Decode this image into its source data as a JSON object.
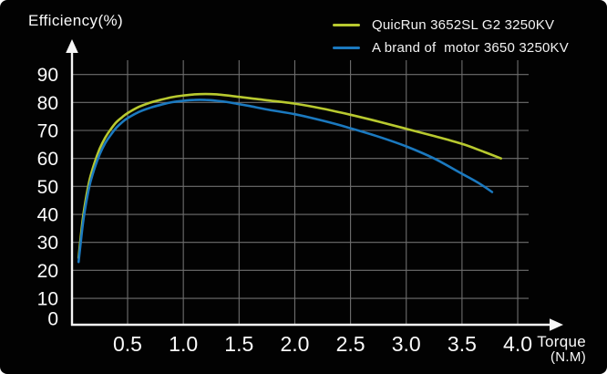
{
  "title": "Efficiency(%)",
  "legend": {
    "items": [
      {
        "label": "QuicRun 3652SL G2 3250KV",
        "color": "#b8c92f"
      },
      {
        "label": "A brand of  motor 3650 3250KV",
        "color": "#1b79bf"
      }
    ]
  },
  "x_axis": {
    "label_line1": "Torque",
    "label_line2": "(N.M)",
    "tick_labels": [
      "0.5",
      "1.0",
      "1.5",
      "2.0",
      "2.5",
      "3.0",
      "3.5",
      "4.0"
    ],
    "tick_values": [
      0.5,
      1.0,
      1.5,
      2.0,
      2.5,
      3.0,
      3.5,
      4.0
    ]
  },
  "y_axis": {
    "tick_labels": [
      "90",
      "80",
      "70",
      "60",
      "50",
      "40",
      "30",
      "20",
      "10",
      "0"
    ],
    "tick_values": [
      90,
      80,
      70,
      60,
      50,
      40,
      30,
      20,
      10,
      0
    ]
  },
  "colors": {
    "background": "#020202",
    "grid": "#6f6f6f",
    "axis": "#f5f5f5",
    "text": "#fafafa"
  },
  "chart_data": {
    "type": "line",
    "title": "",
    "xlabel": "Torque (N.M)",
    "ylabel": "Efficiency(%)",
    "xlim": [
      0,
      4.3
    ],
    "ylim": [
      0,
      95
    ],
    "x_ticks": [
      0.5,
      1.0,
      1.5,
      2.0,
      2.5,
      3.0,
      3.5,
      4.0
    ],
    "y_ticks": [
      0,
      10,
      20,
      30,
      40,
      50,
      60,
      70,
      80,
      90
    ],
    "grid": true,
    "legend_position": "top-right",
    "series": [
      {
        "name": "QuicRun 3652SL G2 3250KV",
        "color": "#b8c92f",
        "points": [
          [
            0.06,
            24.5
          ],
          [
            0.08,
            32
          ],
          [
            0.1,
            39
          ],
          [
            0.13,
            46.5
          ],
          [
            0.16,
            52.5
          ],
          [
            0.2,
            58
          ],
          [
            0.25,
            63.5
          ],
          [
            0.3,
            67.5
          ],
          [
            0.35,
            70.5
          ],
          [
            0.4,
            73
          ],
          [
            0.45,
            74.7
          ],
          [
            0.5,
            76.2
          ],
          [
            0.6,
            78.4
          ],
          [
            0.7,
            79.9
          ],
          [
            0.8,
            81
          ],
          [
            0.9,
            81.9
          ],
          [
            1.0,
            82.5
          ],
          [
            1.1,
            82.9
          ],
          [
            1.2,
            83
          ],
          [
            1.3,
            82.9
          ],
          [
            1.4,
            82.5
          ],
          [
            1.5,
            82
          ],
          [
            1.6,
            81.5
          ],
          [
            1.75,
            80.8
          ],
          [
            2.0,
            79.6
          ],
          [
            2.25,
            77.8
          ],
          [
            2.5,
            75.6
          ],
          [
            2.75,
            73.2
          ],
          [
            3.0,
            70.6
          ],
          [
            3.25,
            68
          ],
          [
            3.5,
            65.2
          ],
          [
            3.7,
            62.3
          ],
          [
            3.85,
            60
          ]
        ]
      },
      {
        "name": "A brand of  motor 3650 3250KV",
        "color": "#1b79bf",
        "points": [
          [
            0.06,
            23
          ],
          [
            0.08,
            30
          ],
          [
            0.1,
            37
          ],
          [
            0.13,
            44.5
          ],
          [
            0.16,
            50.5
          ],
          [
            0.2,
            56
          ],
          [
            0.25,
            61.5
          ],
          [
            0.3,
            65.5
          ],
          [
            0.35,
            68.5
          ],
          [
            0.4,
            71
          ],
          [
            0.45,
            72.9
          ],
          [
            0.5,
            74.4
          ],
          [
            0.6,
            76.6
          ],
          [
            0.7,
            78.1
          ],
          [
            0.8,
            79.2
          ],
          [
            0.9,
            80.1
          ],
          [
            1.0,
            80.6
          ],
          [
            1.1,
            80.9
          ],
          [
            1.2,
            80.9
          ],
          [
            1.3,
            80.6
          ],
          [
            1.4,
            80.1
          ],
          [
            1.5,
            79.4
          ],
          [
            1.6,
            78.7
          ],
          [
            1.75,
            77.5
          ],
          [
            2.0,
            75.8
          ],
          [
            2.25,
            73.5
          ],
          [
            2.5,
            70.8
          ],
          [
            2.75,
            67.8
          ],
          [
            3.0,
            64.3
          ],
          [
            3.25,
            60
          ],
          [
            3.5,
            54.5
          ],
          [
            3.65,
            51.2
          ],
          [
            3.77,
            48
          ]
        ]
      }
    ]
  }
}
